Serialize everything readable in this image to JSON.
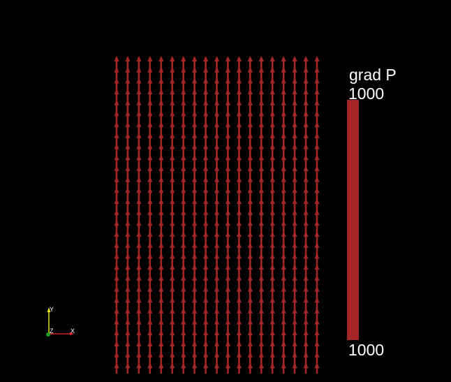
{
  "field": {
    "name": "grad P",
    "magnitude": 1000,
    "direction": "+y",
    "columns": 19,
    "rows": 29,
    "glyph_color": "#a52626"
  },
  "legend": {
    "title": "grad P",
    "max_label": "1000",
    "min_label": "1000",
    "color": "#a52626"
  },
  "axes": {
    "x_label": "X",
    "y_label": "Y",
    "z_label": "Z",
    "x_color": "#d42020",
    "y_color": "#e8e020",
    "z_color": "#20a020"
  },
  "colors": {
    "background": "#000000",
    "text": "#ffffff"
  }
}
